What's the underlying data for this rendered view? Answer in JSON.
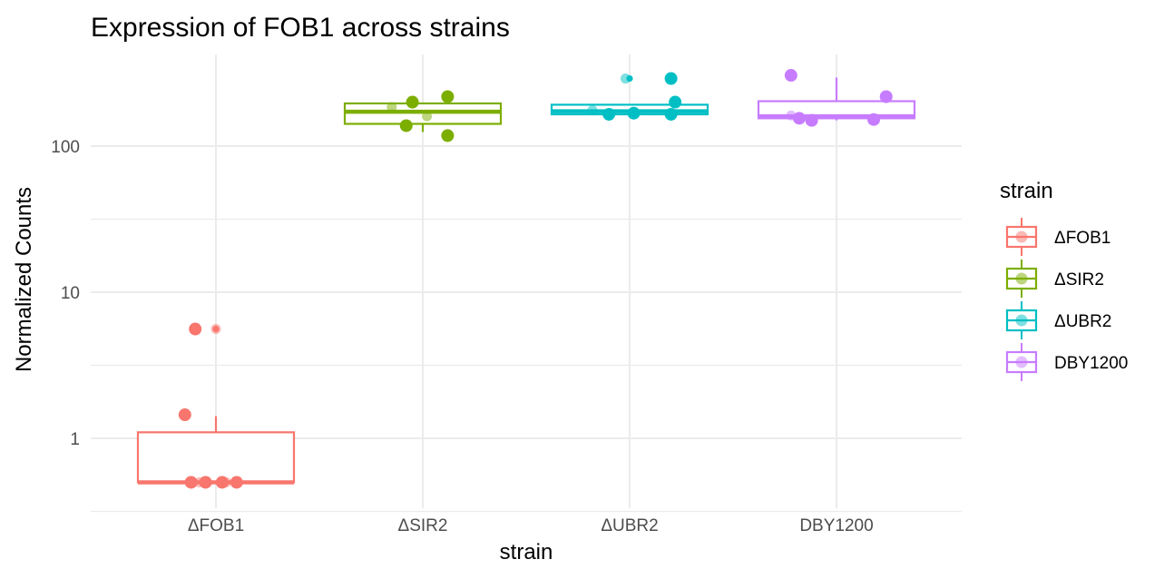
{
  "chart_data": {
    "type": "box",
    "title": "Expression of FOB1 across strains",
    "xlabel": "strain",
    "ylabel": "Normalized Counts",
    "y_scale": "log10",
    "ylim": [
      0.4,
      330
    ],
    "y_ticks": [
      1,
      10,
      100
    ],
    "y_tick_labels": [
      "1",
      "10",
      "100"
    ],
    "categories": [
      "ΔFOB1",
      "ΔSIR2",
      "ΔUBR2",
      "DBY1200"
    ],
    "legend": {
      "title": "strain",
      "position": "right"
    },
    "grid": true,
    "series": [
      {
        "name": "ΔFOB1",
        "color": "#F8766D",
        "box": {
          "lower_whisker": 0.5,
          "q1": 0.5,
          "median": 0.5,
          "q3": 1.1,
          "upper_whisker": 1.42
        },
        "outliers": [
          5.6,
          5.6
        ],
        "points": [
          {
            "dx": -0.15,
            "y": 1.45,
            "a": 1
          },
          {
            "dx": -0.1,
            "y": 5.6,
            "a": 1
          },
          {
            "dx": 0.0,
            "y": 5.6,
            "a": 0.5
          },
          {
            "dx": -0.12,
            "y": 0.5,
            "a": 1
          },
          {
            "dx": -0.05,
            "y": 0.5,
            "a": 1
          },
          {
            "dx": 0.03,
            "y": 0.5,
            "a": 1
          },
          {
            "dx": 0.1,
            "y": 0.5,
            "a": 1
          },
          {
            "dx": -0.08,
            "y": 0.5,
            "a": 0.5
          },
          {
            "dx": 0.05,
            "y": 0.5,
            "a": 0.5
          }
        ]
      },
      {
        "name": "ΔSIR2",
        "color": "#7CAE00",
        "box": {
          "lower_whisker": 125,
          "q1": 142,
          "median": 172,
          "q3": 196,
          "upper_whisker": 196
        },
        "outliers": [],
        "points": [
          {
            "dx": -0.15,
            "y": 185,
            "a": 0.5
          },
          {
            "dx": -0.05,
            "y": 200,
            "a": 1
          },
          {
            "dx": 0.12,
            "y": 218,
            "a": 1
          },
          {
            "dx": -0.08,
            "y": 138,
            "a": 1
          },
          {
            "dx": 0.12,
            "y": 118,
            "a": 1
          },
          {
            "dx": 0.02,
            "y": 160,
            "a": 0.5
          }
        ]
      },
      {
        "name": "ΔUBR2",
        "color": "#00BFC4",
        "box": {
          "lower_whisker": 165,
          "q1": 165,
          "median": 173,
          "q3": 192,
          "upper_whisker": 192
        },
        "outliers": [
          290,
          290
        ],
        "points": [
          {
            "dx": -0.18,
            "y": 176,
            "a": 0.5
          },
          {
            "dx": -0.1,
            "y": 165,
            "a": 1
          },
          {
            "dx": 0.02,
            "y": 168,
            "a": 1
          },
          {
            "dx": 0.2,
            "y": 165,
            "a": 1
          },
          {
            "dx": 0.22,
            "y": 200,
            "a": 1
          },
          {
            "dx": 0.2,
            "y": 290,
            "a": 1
          },
          {
            "dx": -0.02,
            "y": 290,
            "a": 0.5
          }
        ]
      },
      {
        "name": "DBY1200",
        "color": "#C77CFF",
        "box": {
          "lower_whisker": 150,
          "q1": 155,
          "median": 160,
          "q3": 203,
          "upper_whisker": 295
        },
        "outliers": [],
        "points": [
          {
            "dx": -0.22,
            "y": 162,
            "a": 0.5
          },
          {
            "dx": -0.18,
            "y": 155,
            "a": 1
          },
          {
            "dx": -0.12,
            "y": 150,
            "a": 1
          },
          {
            "dx": 0.18,
            "y": 152,
            "a": 1
          },
          {
            "dx": 0.24,
            "y": 218,
            "a": 1
          },
          {
            "dx": -0.22,
            "y": 305,
            "a": 1
          }
        ]
      }
    ]
  }
}
